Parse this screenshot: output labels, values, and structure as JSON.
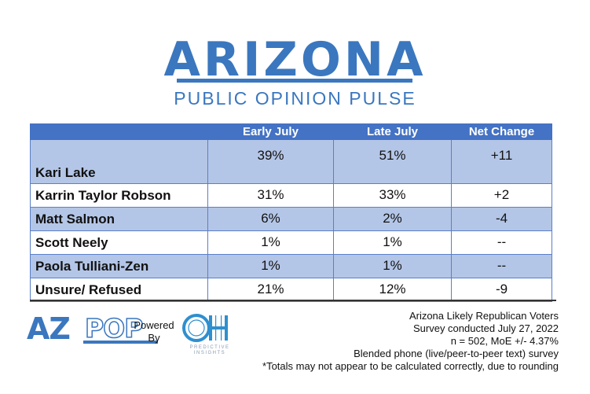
{
  "brand": {
    "title": "ARIZONA",
    "subtitle": "PUBLIC OPINION PULSE"
  },
  "chart_data": {
    "type": "table",
    "columns": [
      "",
      "Early July",
      "Late July",
      "Net Change"
    ],
    "rows": [
      {
        "candidate": "Kari Lake",
        "early_july": "39%",
        "late_july": "51%",
        "net_change": "+11"
      },
      {
        "candidate": "Karrin Taylor Robson",
        "early_july": "31%",
        "late_july": "33%",
        "net_change": "+2"
      },
      {
        "candidate": "Matt Salmon",
        "early_july": "6%",
        "late_july": "2%",
        "net_change": "-4"
      },
      {
        "candidate": "Scott Neely",
        "early_july": "1%",
        "late_july": "1%",
        "net_change": "--"
      },
      {
        "candidate": "Paola Tulliani-Zen",
        "early_july": "1%",
        "late_july": "1%",
        "net_change": "--"
      },
      {
        "candidate": "Unsure/ Refused",
        "early_july": "21%",
        "late_july": "12%",
        "net_change": "-9"
      }
    ]
  },
  "footer": {
    "logo_az": "AZ",
    "logo_pop": "POP",
    "powered_line1": "Powered",
    "powered_line2": "By",
    "oh_logo": "OH",
    "oh_line1": "PREDICTIVE",
    "oh_line2": "INSIGHTS",
    "notes": [
      "Arizona Likely Republican Voters",
      "Survey conducted July 27, 2022",
      "n = 502, MoE +/- 4.37%",
      "Blended phone (live/peer-to-peer text) survey",
      "*Totals may not appear to be calculated correctly, due to rounding"
    ]
  },
  "colors": {
    "accent": "#3a77bf",
    "header_bg": "#4472c4",
    "row_alt": "#b4c6e7"
  }
}
